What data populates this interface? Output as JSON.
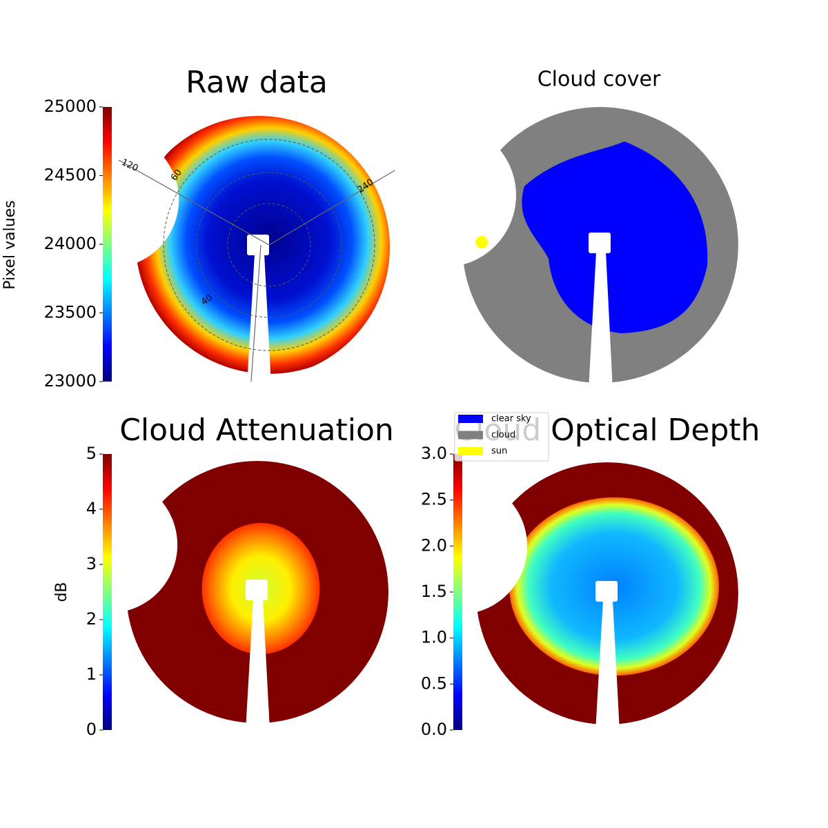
{
  "chart_data": [
    {
      "type": "image",
      "title": "Raw data",
      "colorbar": {
        "label": "Pixel values",
        "colormap": "jet",
        "lim": [
          23000,
          25000
        ],
        "ticks": [
          23000,
          23500,
          24000,
          24500,
          25000
        ]
      },
      "annotations": [
        "120",
        "60",
        "240",
        "40"
      ]
    },
    {
      "type": "image",
      "title": "Cloud cover",
      "legend": [
        {
          "name": "clear sky",
          "color": "#0000ff"
        },
        {
          "name": "cloud",
          "color": "#808080"
        },
        {
          "name": "sun",
          "color": "#ffff00"
        }
      ]
    },
    {
      "type": "image",
      "title": "Cloud Attenuation",
      "colorbar": {
        "label": "dB",
        "colormap": "jet",
        "lim": [
          0,
          5
        ],
        "ticks": [
          0,
          1,
          2,
          3,
          4,
          5
        ]
      }
    },
    {
      "type": "image",
      "title": "Cloud Optical Depth",
      "colorbar": {
        "colormap": "jet",
        "lim": [
          0,
          3
        ],
        "ticks": [
          {
            "value": 0,
            "label": "0.0"
          },
          0.5,
          {
            "value": 1,
            "label": "1.0"
          },
          1.5,
          {
            "value": 2,
            "label": "2.0"
          },
          2.5,
          {
            "value": 3,
            "label": "3.0"
          }
        ]
      }
    }
  ]
}
